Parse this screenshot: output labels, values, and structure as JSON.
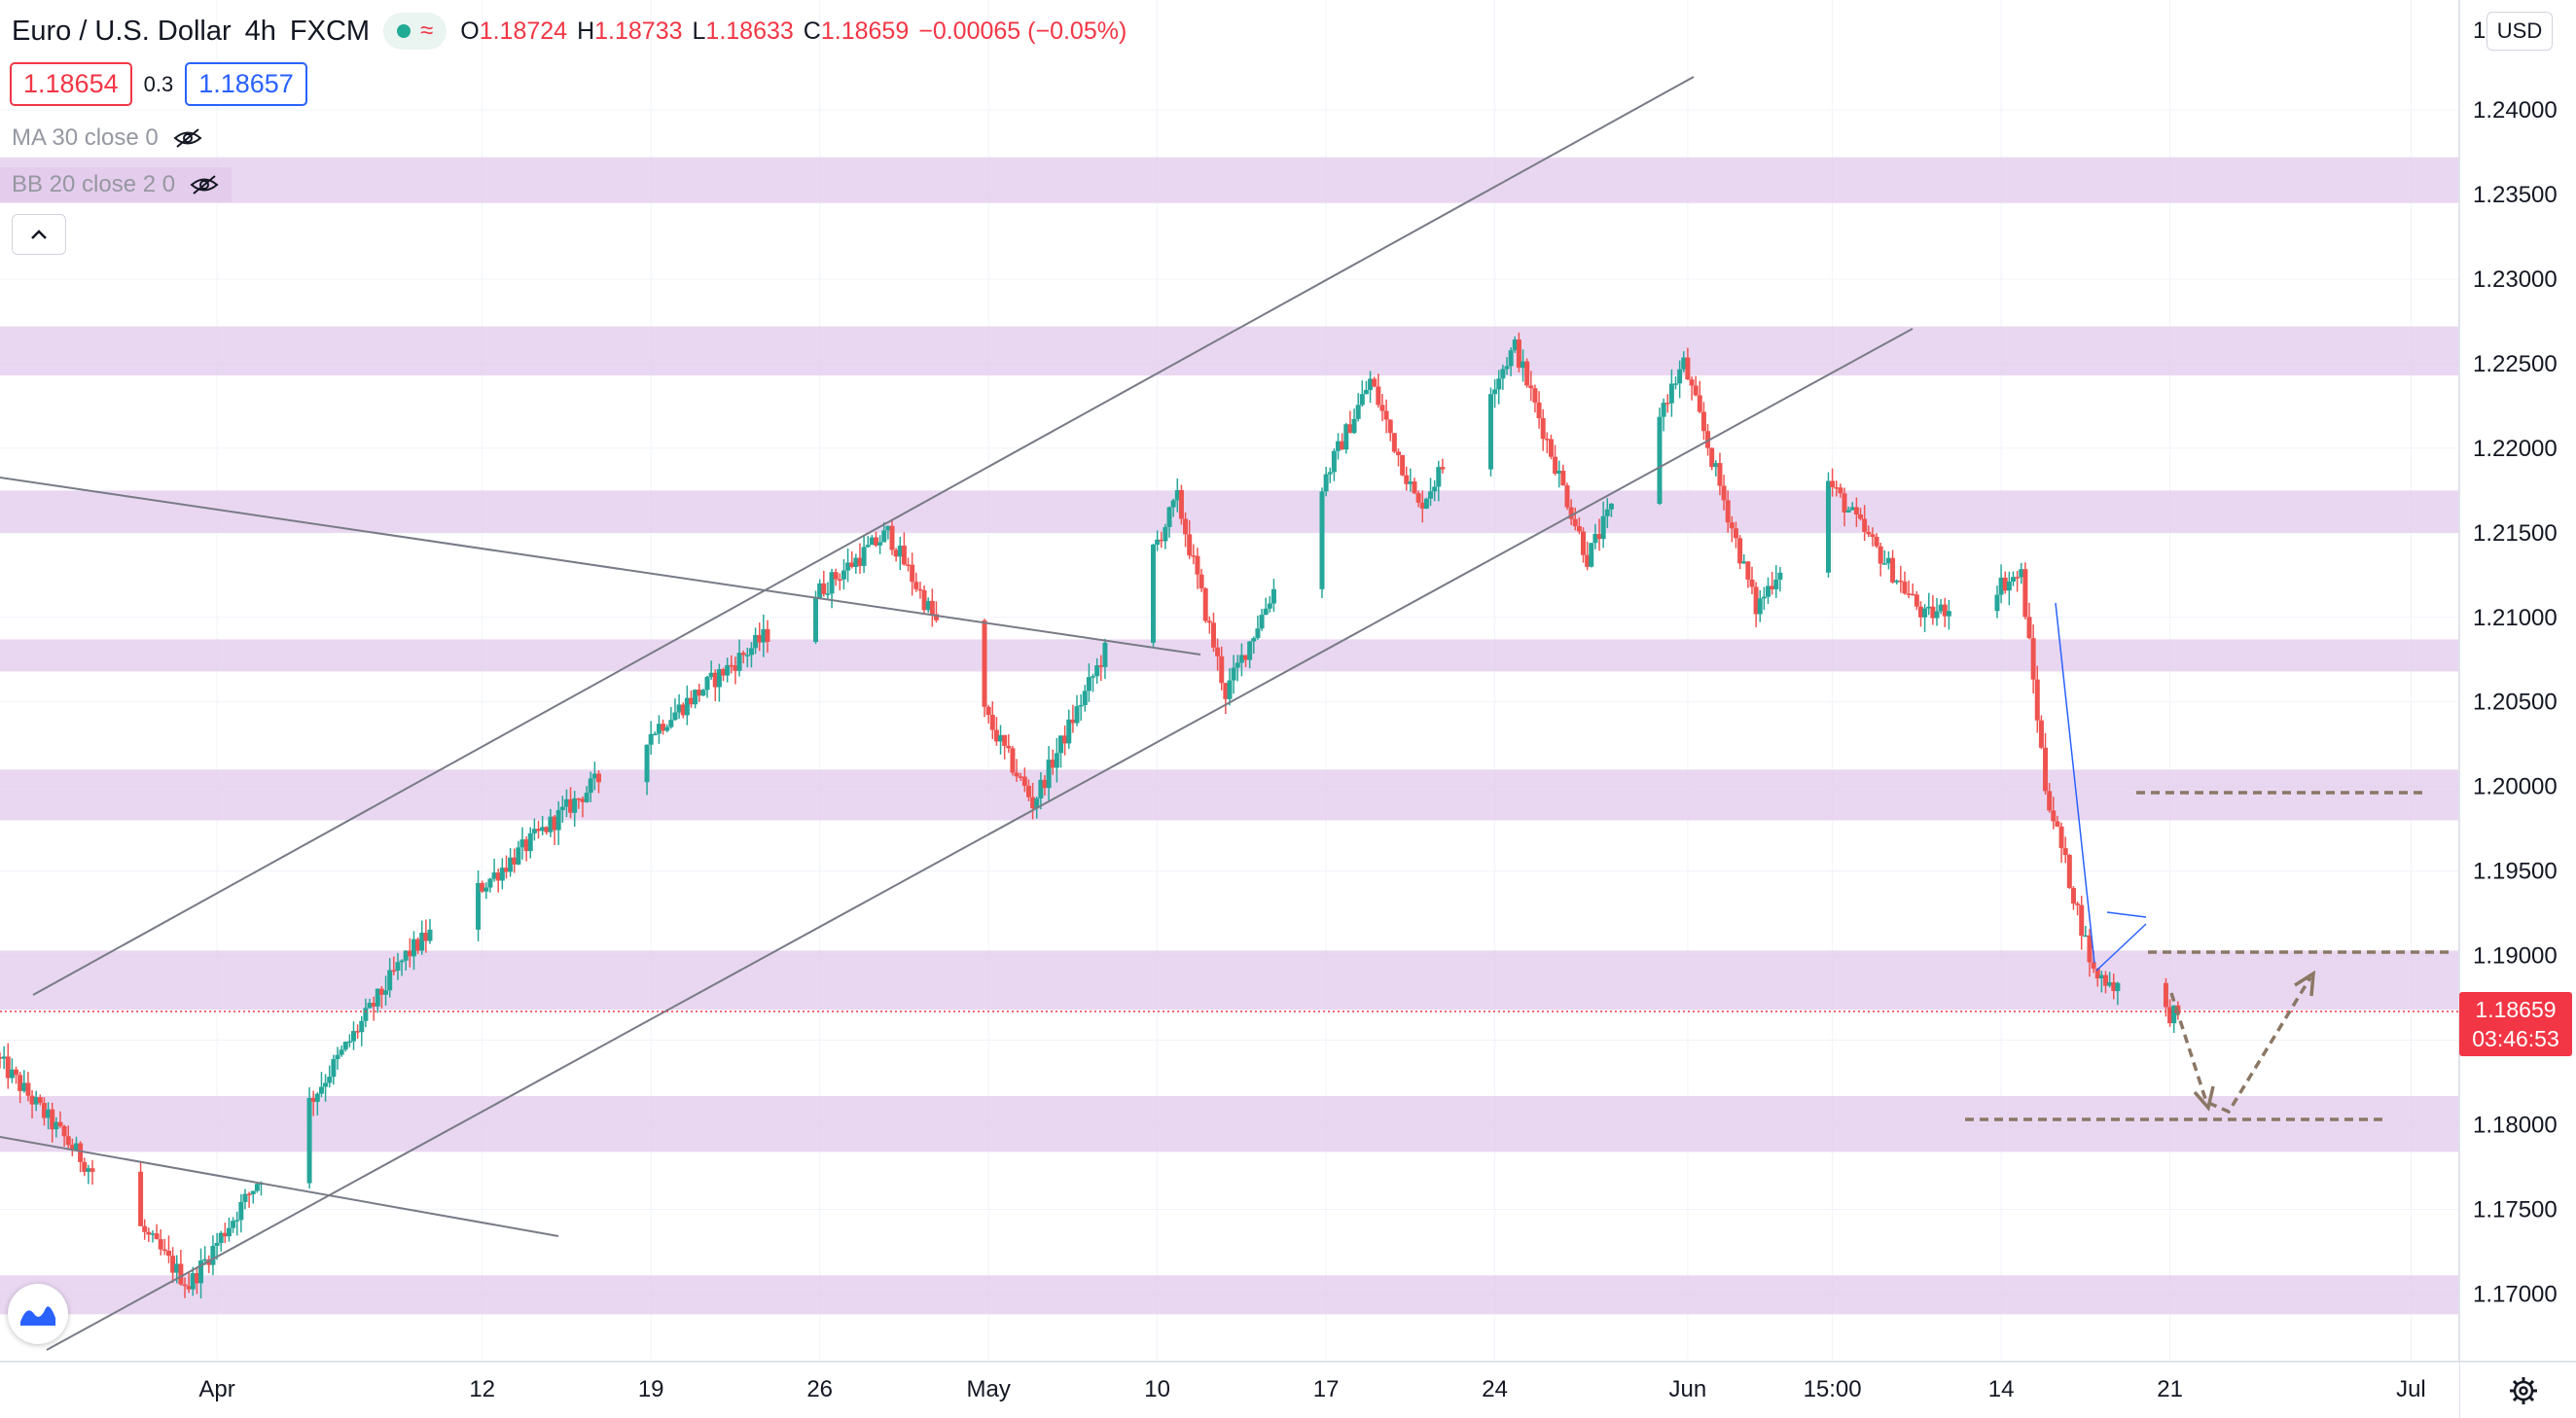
{
  "header": {
    "symbol": "Euro / U.S. Dollar",
    "interval": "4h",
    "exchange": "FXCM",
    "open_label": "O",
    "open": "1.18724",
    "high_label": "H",
    "high": "1.18733",
    "low_label": "L",
    "low": "1.18633",
    "close_label": "C",
    "close": "1.18659",
    "change": "−0.00065 (−0.05%)"
  },
  "trade": {
    "sell": "1.18654",
    "spread": "0.3",
    "buy": "1.18657"
  },
  "indicators": [
    {
      "label": "MA 30 close 0",
      "hidden": true
    },
    {
      "label": "BB 20 close 2 0",
      "hidden": true
    }
  ],
  "currency": "USD",
  "last_price": {
    "value": "1.18659",
    "countdown": "03:46:53"
  },
  "colors": {
    "up": "#26a69a",
    "down": "#ef5350",
    "zone": "#e1c8eb",
    "trendline": "#787b86",
    "wedge": "#2962ff",
    "projection": "#8b7765",
    "accent": "#f23645"
  },
  "icons": [
    "live-dot-icon",
    "wave-icon",
    "eye-slash-icon",
    "chevron-up-icon",
    "tradingview-logo-icon",
    "settings-gear-icon"
  ],
  "chart_data": {
    "type": "candlestick",
    "symbol": "EURUSD",
    "timeframe": "4h",
    "y_ticks": [
      "1.24000",
      "1.23500",
      "1.23000",
      "1.22500",
      "1.22000",
      "1.21500",
      "1.21000",
      "1.20500",
      "1.20000",
      "1.19500",
      "1.19000",
      "1.18500",
      "1.18000",
      "1.17500",
      "1.17000"
    ],
    "y_range": [
      1.166,
      1.2465
    ],
    "x_ticks": [
      "Apr",
      "12",
      "19",
      "26",
      "May",
      "10",
      "17",
      "24",
      "Jun",
      "15:00",
      "14",
      "21",
      "Jul"
    ],
    "zones": [
      {
        "from": 1.2345,
        "to": 1.2372
      },
      {
        "from": 1.2243,
        "to": 1.2272
      },
      {
        "from": 1.215,
        "to": 1.2175
      },
      {
        "from": 1.2068,
        "to": 1.2087
      },
      {
        "from": 1.198,
        "to": 1.201
      },
      {
        "from": 1.1868,
        "to": 1.1903
      },
      {
        "from": 1.1784,
        "to": 1.1817
      },
      {
        "from": 1.1688,
        "to": 1.1711
      }
    ],
    "key_points": [
      {
        "date": "2021-03-31",
        "price": 1.1705
      },
      {
        "date": "2021-04-09",
        "price": 1.19
      },
      {
        "date": "2021-04-19",
        "price": 1.203
      },
      {
        "date": "2021-04-29",
        "price": 1.215
      },
      {
        "date": "2021-05-05",
        "price": 1.199
      },
      {
        "date": "2021-05-11",
        "price": 1.217
      },
      {
        "date": "2021-05-13",
        "price": 1.2055
      },
      {
        "date": "2021-05-19",
        "price": 1.224
      },
      {
        "date": "2021-05-21",
        "price": 1.2165
      },
      {
        "date": "2021-05-25",
        "price": 1.226
      },
      {
        "date": "2021-05-28",
        "price": 1.2135
      },
      {
        "date": "2021-06-01",
        "price": 1.225
      },
      {
        "date": "2021-06-04",
        "price": 1.2105
      },
      {
        "date": "2021-06-07",
        "price": 1.218
      },
      {
        "date": "2021-06-11",
        "price": 1.21
      },
      {
        "date": "2021-06-15",
        "price": 1.2125
      },
      {
        "date": "2021-06-16",
        "price": 1.2
      },
      {
        "date": "2021-06-18",
        "price": 1.189
      },
      {
        "date": "2021-06-21",
        "price": 1.1866
      }
    ],
    "levels": [
      1.1998,
      1.1901,
      1.1801
    ],
    "last_price": 1.18659
  }
}
